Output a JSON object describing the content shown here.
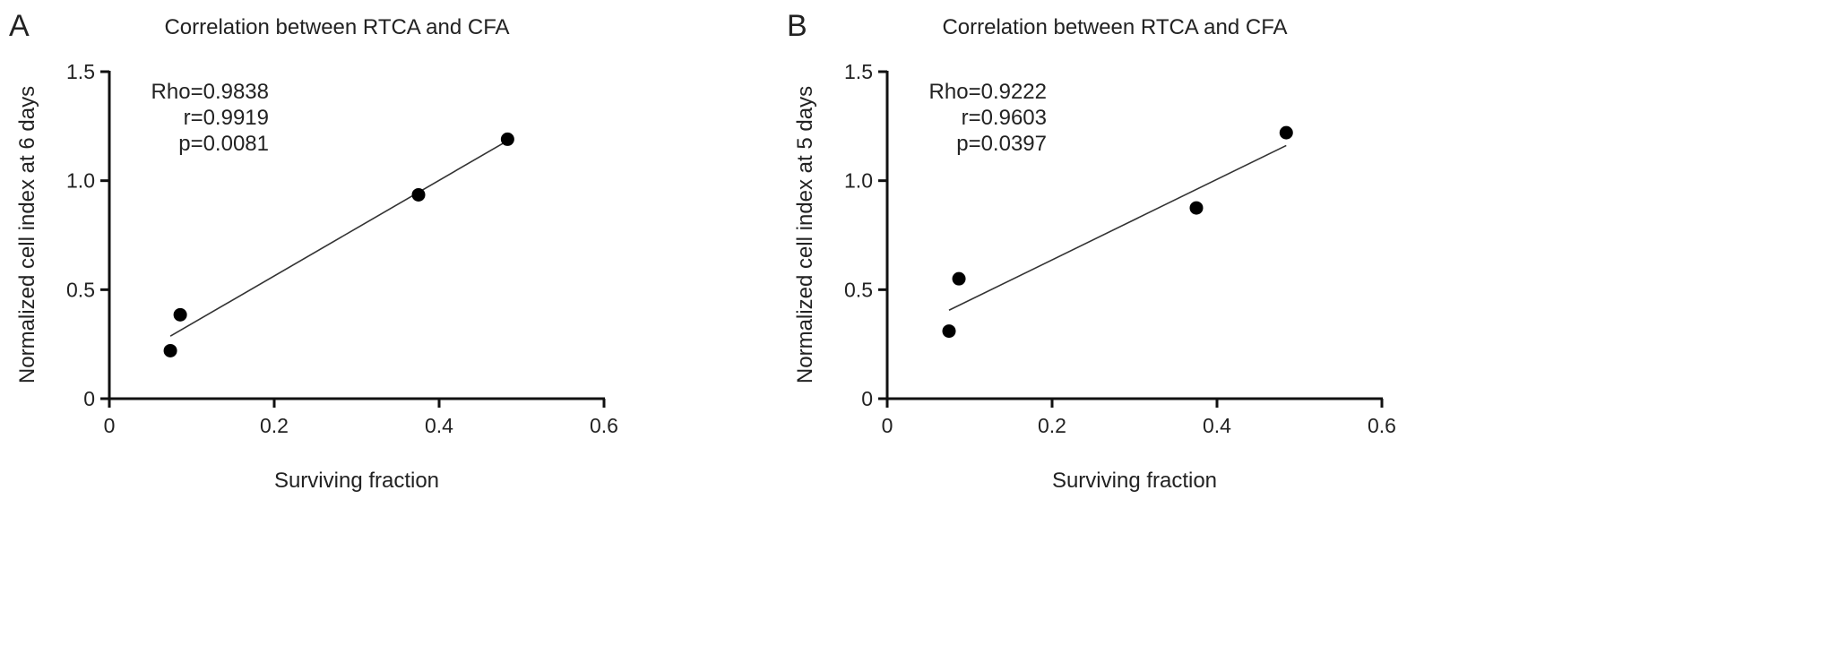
{
  "chart_data": [
    {
      "panel_label": "A",
      "type": "scatter",
      "title": "Correlation between RTCA and CFA",
      "xlabel": "Surviving fraction",
      "ylabel": "Normalized cell index at 6 days",
      "xlim": [
        0,
        0.6
      ],
      "ylim": [
        0,
        1.5
      ],
      "xticks": [
        "0",
        "0.2",
        "0.4",
        "0.6"
      ],
      "yticks": [
        "0",
        "0.5",
        "1.0",
        "1.5"
      ],
      "grid": false,
      "points": [
        {
          "x": 0.074,
          "y": 0.22
        },
        {
          "x": 0.086,
          "y": 0.385
        },
        {
          "x": 0.375,
          "y": 0.935
        },
        {
          "x": 0.483,
          "y": 1.19
        }
      ],
      "trendline": "linear",
      "annotations": [
        "Rho=0.9838",
        "r=0.9919",
        "p=0.0081"
      ]
    },
    {
      "panel_label": "B",
      "type": "scatter",
      "title": "Correlation between RTCA and CFA",
      "xlabel": "Surviving fraction",
      "ylabel": "Normalized cell index at 5 days",
      "xlim": [
        0,
        0.6
      ],
      "ylim": [
        0,
        1.5
      ],
      "xticks": [
        "0",
        "0.2",
        "0.4",
        "0.6"
      ],
      "yticks": [
        "0",
        "0.5",
        "1.0",
        "1.5"
      ],
      "grid": false,
      "points": [
        {
          "x": 0.075,
          "y": 0.31
        },
        {
          "x": 0.087,
          "y": 0.55
        },
        {
          "x": 0.375,
          "y": 0.875
        },
        {
          "x": 0.484,
          "y": 1.22
        }
      ],
      "trendline": "linear",
      "annotations": [
        "Rho=0.9222",
        "r=0.9603",
        "p=0.0397"
      ]
    }
  ]
}
